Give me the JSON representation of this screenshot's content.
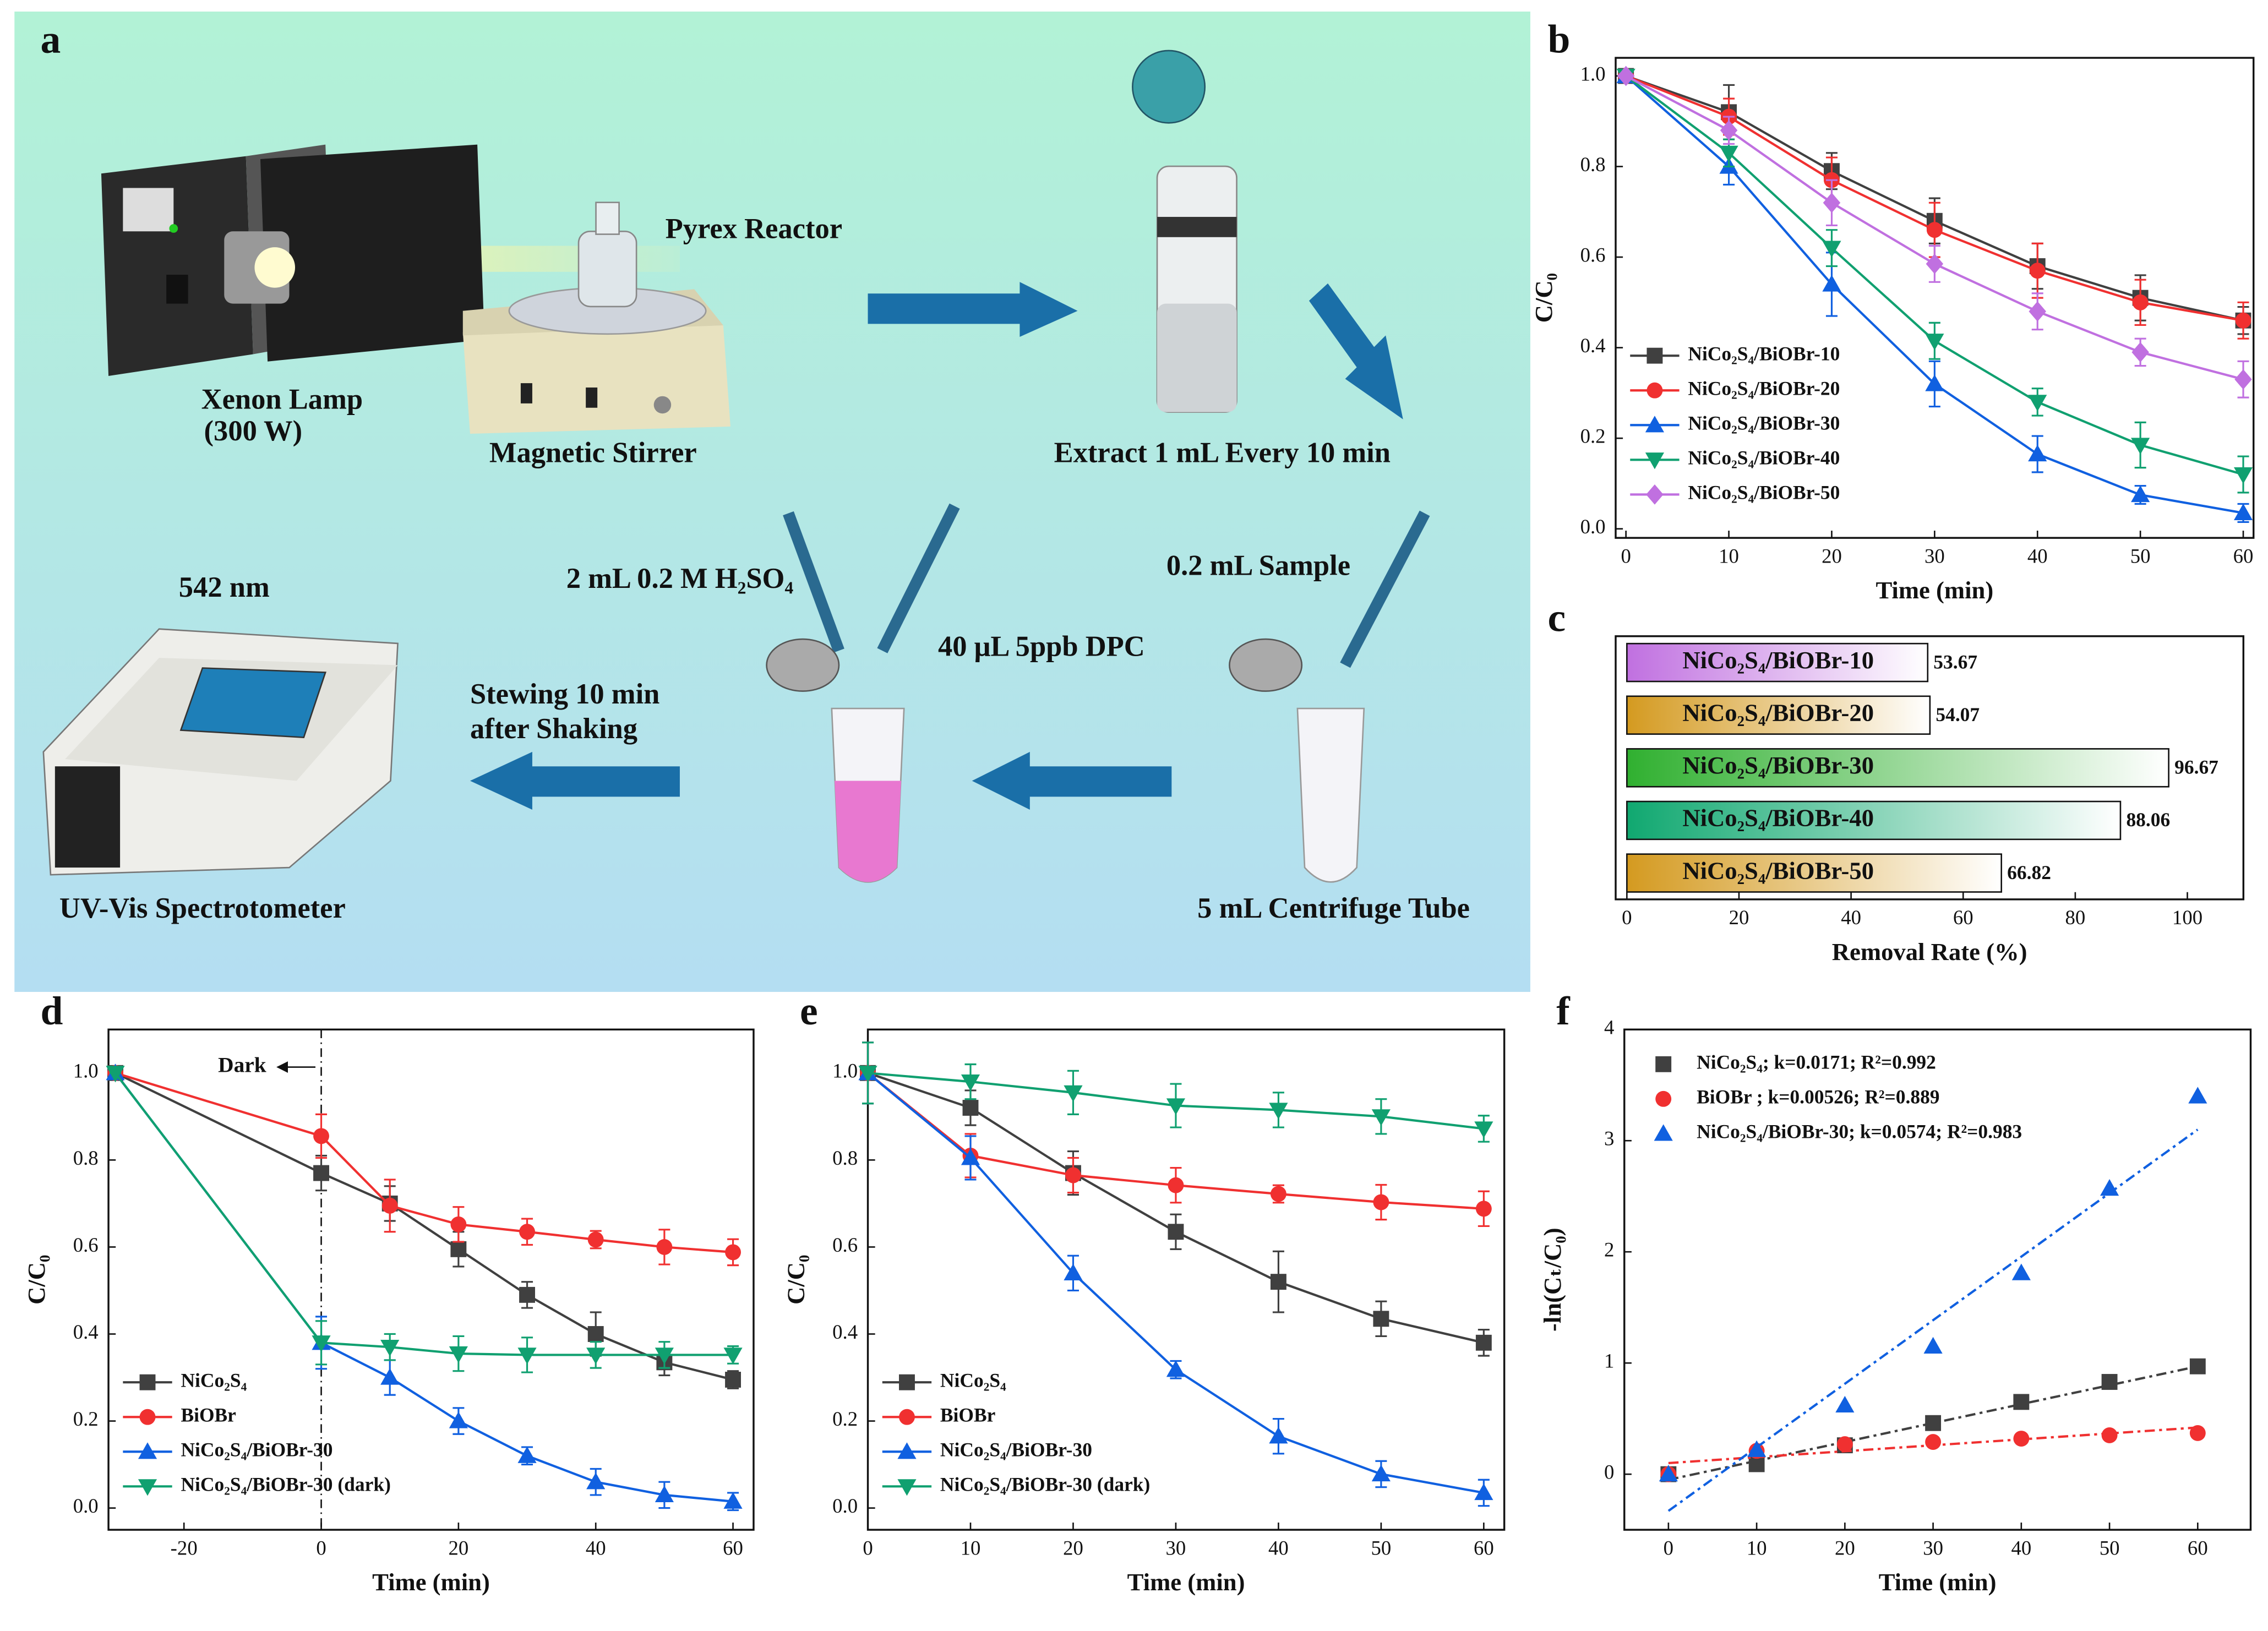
{
  "schematic": {
    "panel": "a",
    "labels": [
      "Pyrex Reactor",
      "Xenon Lamp",
      "(300 W)",
      "Magnetic Stirrer",
      "Extract 1 mL Every 10 min",
      "542 nm",
      "2 mL 0.2 M H₂SO₄",
      "0.2 mL Sample",
      "40 μL 5ppb DPC",
      "Stewing 10 min",
      "after Shaking",
      "UV-Vis Spectrotometer",
      "5 mL Centrifuge Tube"
    ]
  },
  "chart_data": [
    {
      "type": "line",
      "panel": "b",
      "x_label": "Time (min)",
      "y_label": "C/C₀",
      "x": [
        0,
        10,
        20,
        30,
        40,
        50,
        60
      ],
      "xlim": [
        -1,
        61
      ],
      "ylim": [
        -0.02,
        1.04
      ],
      "xticks": [
        0,
        10,
        20,
        30,
        40,
        50,
        60
      ],
      "yticks": [
        {
          "value": 0,
          "label": "0.0"
        },
        0.2,
        0.4,
        0.6,
        0.8,
        {
          "value": 1,
          "label": "1.0"
        }
      ],
      "legend": "lower left",
      "series": [
        {
          "name": "NiCo₂S₄/BiOBr-10",
          "color": "#404040",
          "values": [
            1,
            0.92,
            0.79,
            0.68,
            0.58,
            0.51,
            0.46
          ],
          "errors": [
            0,
            0.06,
            0.04,
            0.05,
            0.05,
            0.05,
            0.03
          ]
        },
        {
          "name": "NiCo₂S₄/BiOBr-20",
          "color": "#f03030",
          "values": [
            1,
            0.91,
            0.77,
            0.66,
            0.57,
            0.5,
            0.46
          ],
          "errors": [
            0,
            0.04,
            0.05,
            0.06,
            0.06,
            0.05,
            0.04
          ]
        },
        {
          "name": "NiCo₂S₄/BiOBr-30",
          "color": "#1060e0",
          "values": [
            1,
            0.8,
            0.54,
            0.32,
            0.165,
            0.075,
            0.035
          ],
          "errors": [
            0,
            0.04,
            0.07,
            0.05,
            0.04,
            0.02,
            0.02
          ]
        },
        {
          "name": "NiCo₂S₄/BiOBr-40",
          "color": "#10a070",
          "values": [
            1,
            0.83,
            0.62,
            0.415,
            0.28,
            0.185,
            0.12
          ],
          "errors": [
            0,
            0.03,
            0.04,
            0.04,
            0.03,
            0.05,
            0.04
          ]
        },
        {
          "name": "NiCo₂S₄/BiOBr-50",
          "color": "#c070e0",
          "values": [
            1,
            0.88,
            0.72,
            0.585,
            0.48,
            0.39,
            0.33
          ],
          "errors": [
            0,
            0.03,
            0.05,
            0.04,
            0.04,
            0.03,
            0.04
          ]
        }
      ]
    },
    {
      "type": "barh",
      "panel": "c",
      "x_label": "Removal Rate (%)",
      "categories": [
        "NiCo₂S₄/BiOBr-10",
        "NiCo₂S₄/BiOBr-20",
        "NiCo₂S₄/BiOBr-30",
        "NiCo₂S₄/BiOBr-40",
        "NiCo₂S₄/BiOBr-50"
      ],
      "values": [
        53.67,
        54.07,
        96.67,
        88.06,
        66.82
      ],
      "colors": [
        "#c070e0",
        "#d49a20",
        "#30b030",
        "#10a870",
        "#d49a20"
      ],
      "xlim": [
        -2,
        110
      ],
      "xticks": [
        0,
        20,
        40,
        60,
        80,
        100
      ]
    },
    {
      "type": "line",
      "panel": "d",
      "x_label": "Time (min)",
      "y_label": "C/C₀",
      "x": [
        -30,
        0,
        10,
        20,
        30,
        40,
        50,
        60
      ],
      "xlim": [
        -31,
        63
      ],
      "ylim": [
        -0.05,
        1.1
      ],
      "xticks": [
        -20,
        0,
        20,
        40,
        60
      ],
      "yticks": [
        {
          "value": 0,
          "label": "0.0"
        },
        0.2,
        0.4,
        0.6,
        0.8,
        {
          "value": 1,
          "label": "1.0"
        }
      ],
      "legend": "lower left",
      "annotations": [
        {
          "text": "Dark",
          "x": 0
        }
      ],
      "series": [
        {
          "name": "NiCo₂S₄",
          "color": "#404040",
          "values": [
            1,
            0.77,
            0.7,
            0.595,
            0.49,
            0.4,
            0.335,
            0.295
          ],
          "errors": [
            0,
            0.04,
            0.04,
            0.04,
            0.03,
            0.05,
            0.03,
            0.02
          ]
        },
        {
          "name": "BiOBr",
          "color": "#f03030",
          "values": [
            1,
            0.855,
            0.695,
            0.652,
            0.635,
            0.617,
            0.6,
            0.588
          ],
          "errors": [
            0,
            0.05,
            0.06,
            0.04,
            0.03,
            0.02,
            0.04,
            0.03
          ]
        },
        {
          "name": "NiCo₂S₄/BiOBr-30",
          "color": "#1060e0",
          "values": [
            1,
            0.38,
            0.3,
            0.2,
            0.12,
            0.06,
            0.03,
            0.015
          ],
          "errors": [
            0,
            0.06,
            0.04,
            0.03,
            0.02,
            0.03,
            0.03,
            0.02
          ]
        },
        {
          "name": "NiCo₂S₄/BiOBr-30 (dark)",
          "color": "#10a070",
          "values": [
            1,
            0.38,
            0.37,
            0.355,
            0.352,
            0.352,
            0.352,
            0.352
          ],
          "errors": [
            0,
            0.05,
            0.03,
            0.04,
            0.04,
            0.03,
            0.03,
            0.02
          ]
        }
      ]
    },
    {
      "type": "line",
      "panel": "e",
      "x_label": "Time (min)",
      "y_label": "C/C₀",
      "x": [
        0,
        10,
        20,
        30,
        40,
        50,
        60
      ],
      "xlim": [
        0,
        62
      ],
      "ylim": [
        -0.05,
        1.1
      ],
      "xticks": [
        0,
        10,
        20,
        30,
        40,
        50,
        60
      ],
      "yticks": [
        {
          "value": 0,
          "label": "0.0"
        },
        0.2,
        0.4,
        0.6,
        0.8,
        {
          "value": 1,
          "label": "1.0"
        }
      ],
      "legend": "lower left",
      "series": [
        {
          "name": "NiCo₂S₄",
          "color": "#404040",
          "values": [
            1,
            0.92,
            0.77,
            0.635,
            0.52,
            0.435,
            0.38
          ],
          "errors": [
            0.07,
            0.04,
            0.05,
            0.04,
            0.07,
            0.04,
            0.03
          ]
        },
        {
          "name": "BiOBr",
          "color": "#f03030",
          "values": [
            1,
            0.81,
            0.765,
            0.742,
            0.722,
            0.703,
            0.688
          ],
          "errors": [
            0.07,
            0.05,
            0.04,
            0.04,
            0.02,
            0.04,
            0.04
          ]
        },
        {
          "name": "NiCo₂S₄/BiOBr-30",
          "color": "#1060e0",
          "values": [
            1,
            0.805,
            0.54,
            0.318,
            0.165,
            0.078,
            0.035
          ],
          "errors": [
            0.07,
            0.05,
            0.04,
            0.02,
            0.04,
            0.03,
            0.03
          ]
        },
        {
          "name": "NiCo₂S₄/BiOBr-30 (dark)",
          "color": "#10a070",
          "values": [
            1,
            0.98,
            0.955,
            0.925,
            0.915,
            0.9,
            0.872
          ],
          "errors": [
            0.07,
            0.04,
            0.05,
            0.05,
            0.04,
            0.04,
            0.03
          ]
        }
      ]
    },
    {
      "type": "scatter",
      "panel": "f",
      "x_label": "Time (min)",
      "y_label": "-ln(Cₜ/C₀)",
      "x": [
        0,
        10,
        20,
        30,
        40,
        50,
        60
      ],
      "xlim": [
        -5,
        66
      ],
      "ylim": [
        -0.5,
        4
      ],
      "xticks": [
        0,
        10,
        20,
        30,
        40,
        50,
        60
      ],
      "yticks": [
        0,
        1,
        2,
        3,
        4
      ],
      "legend": "upper left",
      "fit_x": [
        0,
        60
      ],
      "series": [
        {
          "name": "NiCo₂S₄; k=0.0171; R²=0.992",
          "color": "#404040",
          "values": [
            0,
            0.09,
            0.26,
            0.46,
            0.65,
            0.83,
            0.97
          ],
          "fit_values": [
            -0.05,
            0.97
          ]
        },
        {
          "name": "BiOBr ; k=0.00526; R²=0.889",
          "color": "#f03030",
          "values": [
            0,
            0.21,
            0.27,
            0.29,
            0.32,
            0.35,
            0.37
          ],
          "fit_values": [
            0.1,
            0.42
          ]
        },
        {
          "name": "NiCo₂S₄/BiOBr-30; k=0.0574; R²=0.983",
          "color": "#1060e0",
          "values": [
            0,
            0.22,
            0.62,
            1.15,
            1.81,
            2.57,
            3.4
          ],
          "fit_values": [
            -0.33,
            3.1
          ]
        }
      ]
    }
  ]
}
